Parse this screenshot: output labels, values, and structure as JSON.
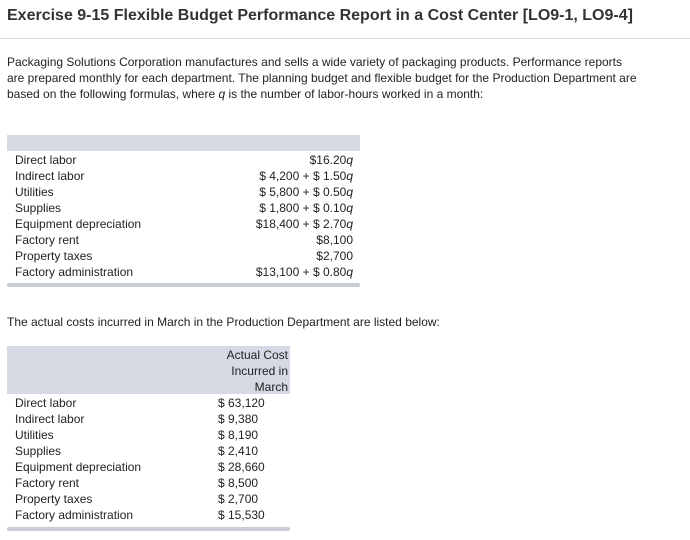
{
  "title": "Exercise 9-15 Flexible Budget Performance Report in a Cost Center [LO9-1, LO9-4]",
  "intro": {
    "before_q": "Packaging Solutions Corporation manufactures and sells a wide variety of packaging products. Performance reports are prepared monthly for each department. The planning budget and flexible budget for the Production Department are based on the following formulas, where ",
    "q": "q",
    "after_q": " is the number of labor-hours worked in a month:"
  },
  "budget_table": {
    "rows": [
      {
        "label": "Direct labor",
        "fixed": "",
        "variable": "$16.20",
        "q": "q"
      },
      {
        "label": "Indirect labor",
        "fixed": "$ 4,200 + ",
        "variable": "$ 1.50",
        "q": "q"
      },
      {
        "label": "Utilities",
        "fixed": "$ 5,800 + ",
        "variable": "$ 0.50",
        "q": "q"
      },
      {
        "label": "Supplies",
        "fixed": "$ 1,800 + ",
        "variable": "$ 0.10",
        "q": "q"
      },
      {
        "label": "Equipment depreciation",
        "fixed": "$18,400 + ",
        "variable": "$ 2.70",
        "q": "q"
      },
      {
        "label": "Factory rent",
        "fixed": "$8,100",
        "variable": "",
        "q": ""
      },
      {
        "label": "Property taxes",
        "fixed": "$2,700",
        "variable": "",
        "q": ""
      },
      {
        "label": "Factory administration",
        "fixed": "$13,100 + ",
        "variable": "$ 0.80",
        "q": "q"
      }
    ]
  },
  "actual_intro": "The actual costs incurred in March in the Production Department are listed below:",
  "actual_table": {
    "header": [
      "Actual Cost",
      "Incurred in",
      "March"
    ],
    "rows": [
      {
        "label": "Direct labor",
        "value": "$ 63,120"
      },
      {
        "label": "Indirect labor",
        "value": "$  9,380"
      },
      {
        "label": "Utilities",
        "value": "$  8,190"
      },
      {
        "label": "Supplies",
        "value": "$  2,410"
      },
      {
        "label": "Equipment depreciation",
        "value": "$ 28,660"
      },
      {
        "label": "Factory rent",
        "value": "$  8,500"
      },
      {
        "label": "Property taxes",
        "value": "$  2,700"
      },
      {
        "label": "Factory administration",
        "value": "$ 15,530"
      }
    ]
  }
}
